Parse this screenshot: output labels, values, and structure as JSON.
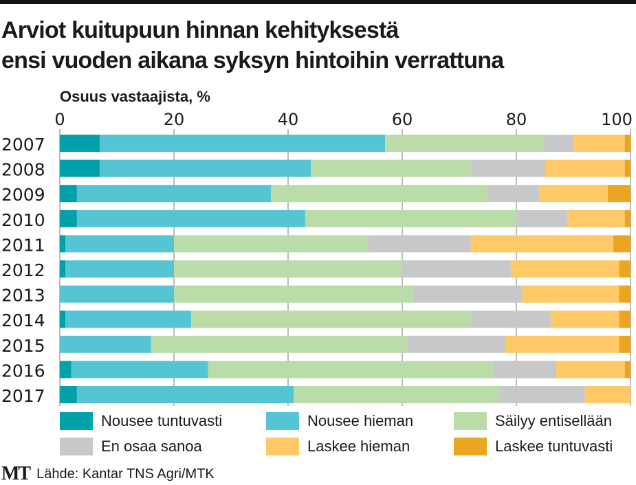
{
  "title_line1": "Arviot kuitupuun hinnan kehityksestä",
  "title_line2": "ensi vuoden aikana syksyn hintoihin verrattuna",
  "footer": {
    "logo": "MT",
    "source": "Lähde: Kantar TNS Agri/MTK"
  },
  "chart_data": {
    "type": "bar",
    "orientation": "horizontal",
    "stacked": true,
    "title": "Arviot kuitupuun hinnan kehityksestä ensi vuoden aikana syksyn hintoihin verrattuna",
    "xlabel": "Osuus vastaajista, %",
    "xlim": [
      0,
      100
    ],
    "xticks": [
      "0",
      "20",
      "40",
      "60",
      "80",
      "100"
    ],
    "grid": true,
    "legend_position": "bottom",
    "categories": [
      "2007",
      "2008",
      "2009",
      "2010",
      "2011",
      "2012",
      "2013",
      "2014",
      "2015",
      "2016",
      "2017"
    ],
    "series": [
      {
        "name": "Nousee tuntuvasti",
        "color": "#00a1ab",
        "values": [
          7,
          7,
          3,
          3,
          1,
          1,
          0,
          1,
          0,
          2,
          3
        ]
      },
      {
        "name": "Nousee hieman",
        "color": "#55c5d3",
        "values": [
          50,
          37,
          34,
          40,
          19,
          19,
          20,
          22,
          16,
          24,
          38
        ]
      },
      {
        "name": "Säilyy entisellään",
        "color": "#b9dca9",
        "values": [
          28,
          28,
          38,
          37,
          34,
          40,
          42,
          49,
          45,
          50,
          36
        ]
      },
      {
        "name": "En osaa sanoa",
        "color": "#c6c8ca",
        "values": [
          5,
          13,
          9,
          9,
          18,
          19,
          19,
          14,
          17,
          11,
          15
        ]
      },
      {
        "name": "Laskee hieman",
        "color": "#fec966",
        "values": [
          9,
          14,
          12,
          10,
          25,
          19,
          17,
          12,
          20,
          12,
          8
        ]
      },
      {
        "name": "Laskee tuntuvasti",
        "color": "#eca520",
        "values": [
          1,
          1,
          4,
          1,
          3,
          2,
          2,
          2,
          2,
          1,
          0
        ]
      }
    ]
  }
}
